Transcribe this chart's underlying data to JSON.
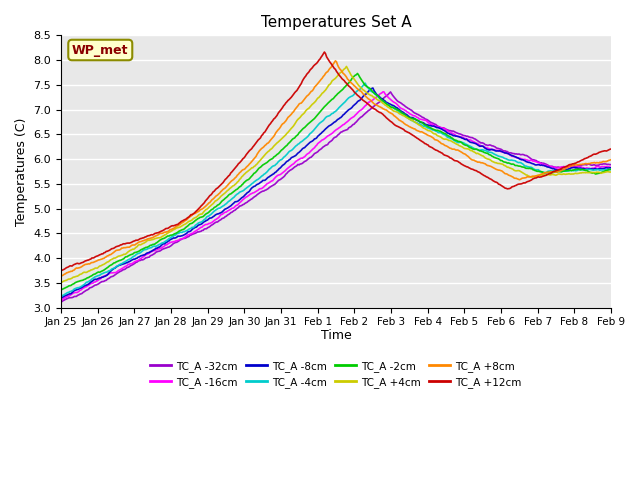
{
  "title": "Temperatures Set A",
  "ylabel": "Temperatures (C)",
  "xlabel": "Time",
  "annotation": "WP_met",
  "ylim": [
    3.0,
    8.5
  ],
  "background_color": "#e8e8e8",
  "series": [
    {
      "label": "TC_A -32cm",
      "color": "#9900cc",
      "depth": -32
    },
    {
      "label": "TC_A -16cm",
      "color": "#ff00ff",
      "depth": -16
    },
    {
      "label": "TC_A -8cm",
      "color": "#0000cc",
      "depth": -8
    },
    {
      "label": "TC_A -4cm",
      "color": "#00cccc",
      "depth": -4
    },
    {
      "label": "TC_A -2cm",
      "color": "#00cc00",
      "depth": -2
    },
    {
      "label": "TC_A +4cm",
      "color": "#cccc00",
      "depth": 4
    },
    {
      "label": "TC_A +8cm",
      "color": "#ff8800",
      "depth": 8
    },
    {
      "label": "TC_A +12cm",
      "color": "#cc0000",
      "depth": 12
    }
  ],
  "x_tick_labels": [
    "Jan 25",
    "Jan 26",
    "Jan 27",
    "Jan 28",
    "Jan 29",
    "Jan 30",
    "Jan 31",
    "Feb 1",
    "Feb 2",
    "Feb 3",
    "Feb 4",
    "Feb 5",
    "Feb 6",
    "Feb 7",
    "Feb 8",
    "Feb 9"
  ],
  "n_points": 500,
  "legend_ncol": 4
}
